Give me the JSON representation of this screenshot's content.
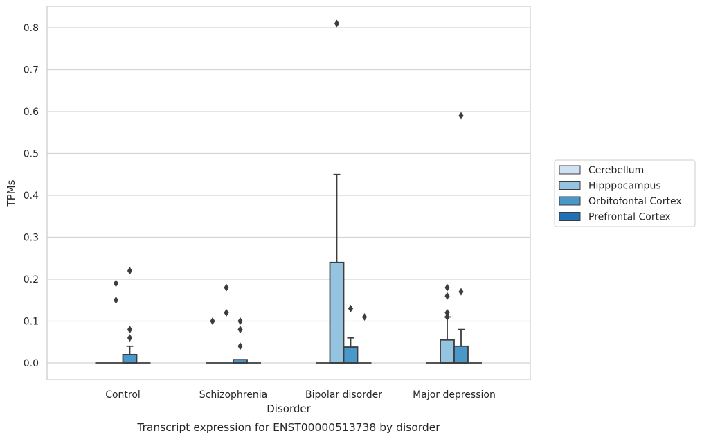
{
  "caption": "Transcript expression for ENST00000513738 by disorder",
  "chart_data": {
    "type": "box",
    "title": "",
    "xlabel": "Disorder",
    "ylabel": "TPMs",
    "categories": [
      "Control",
      "Schizophrenia",
      "Bipolar disorder",
      "Major depression"
    ],
    "ylim": [
      -0.04,
      0.855
    ],
    "yticks": [
      0.0,
      0.1,
      0.2,
      0.3,
      0.4,
      0.5,
      0.6,
      0.7,
      0.8
    ],
    "ytick_labels": [
      "0.0",
      "0.1",
      "0.2",
      "0.3",
      "0.4",
      "0.5",
      "0.6",
      "0.7",
      "0.8"
    ],
    "grid": "horizontal",
    "legend_position": "right",
    "series": [
      {
        "name": "Cerebellum",
        "color": "#d0e1f2",
        "boxes": [
          {
            "q1": 0,
            "median": 0,
            "q3": 0,
            "whisker_low": 0,
            "whisker_high": 0,
            "outliers": []
          },
          {
            "q1": 0,
            "median": 0,
            "q3": 0,
            "whisker_low": 0,
            "whisker_high": 0,
            "outliers": [
              0.1
            ]
          },
          {
            "q1": 0,
            "median": 0,
            "q3": 0,
            "whisker_low": 0,
            "whisker_high": 0,
            "outliers": []
          },
          {
            "q1": 0,
            "median": 0,
            "q3": 0,
            "whisker_low": 0,
            "whisker_high": 0,
            "outliers": []
          }
        ]
      },
      {
        "name": "Hipppocampus",
        "color": "#94c4df",
        "boxes": [
          {
            "q1": 0,
            "median": 0,
            "q3": 0,
            "whisker_low": 0,
            "whisker_high": 0,
            "outliers": [
              0.19,
              0.15
            ]
          },
          {
            "q1": 0,
            "median": 0,
            "q3": 0,
            "whisker_low": 0,
            "whisker_high": 0,
            "outliers": [
              0.18,
              0.12
            ]
          },
          {
            "q1": 0,
            "median": 0,
            "q3": 0.24,
            "whisker_low": 0,
            "whisker_high": 0.45,
            "outliers": [
              0.81
            ]
          },
          {
            "q1": 0,
            "median": 0,
            "q3": 0.055,
            "whisker_low": 0,
            "whisker_high": 0.11,
            "outliers": [
              0.18,
              0.16,
              0.12,
              0.11
            ]
          }
        ]
      },
      {
        "name": "Orbitofontal Cortex",
        "color": "#4a98c9",
        "boxes": [
          {
            "q1": 0,
            "median": 0,
            "q3": 0.02,
            "whisker_low": 0,
            "whisker_high": 0.04,
            "outliers": [
              0.22,
              0.08,
              0.06
            ]
          },
          {
            "q1": 0,
            "median": 0,
            "q3": 0.008,
            "whisker_low": 0,
            "whisker_high": 0.008,
            "outliers": [
              0.1,
              0.08,
              0.04
            ]
          },
          {
            "q1": 0,
            "median": 0,
            "q3": 0.038,
            "whisker_low": 0,
            "whisker_high": 0.06,
            "outliers": [
              0.13
            ]
          },
          {
            "q1": 0,
            "median": 0,
            "q3": 0.04,
            "whisker_low": 0,
            "whisker_high": 0.08,
            "outliers": [
              0.59,
              0.17
            ]
          }
        ]
      },
      {
        "name": "Prefrontal Cortex",
        "color": "#2171b5",
        "boxes": [
          {
            "q1": 0,
            "median": 0,
            "q3": 0,
            "whisker_low": 0,
            "whisker_high": 0,
            "outliers": []
          },
          {
            "q1": 0,
            "median": 0,
            "q3": 0,
            "whisker_low": 0,
            "whisker_high": 0,
            "outliers": []
          },
          {
            "q1": 0,
            "median": 0,
            "q3": 0,
            "whisker_low": 0,
            "whisker_high": 0,
            "outliers": [
              0.11
            ]
          },
          {
            "q1": 0,
            "median": 0,
            "q3": 0,
            "whisker_low": 0,
            "whisker_high": 0,
            "outliers": []
          }
        ]
      }
    ]
  }
}
